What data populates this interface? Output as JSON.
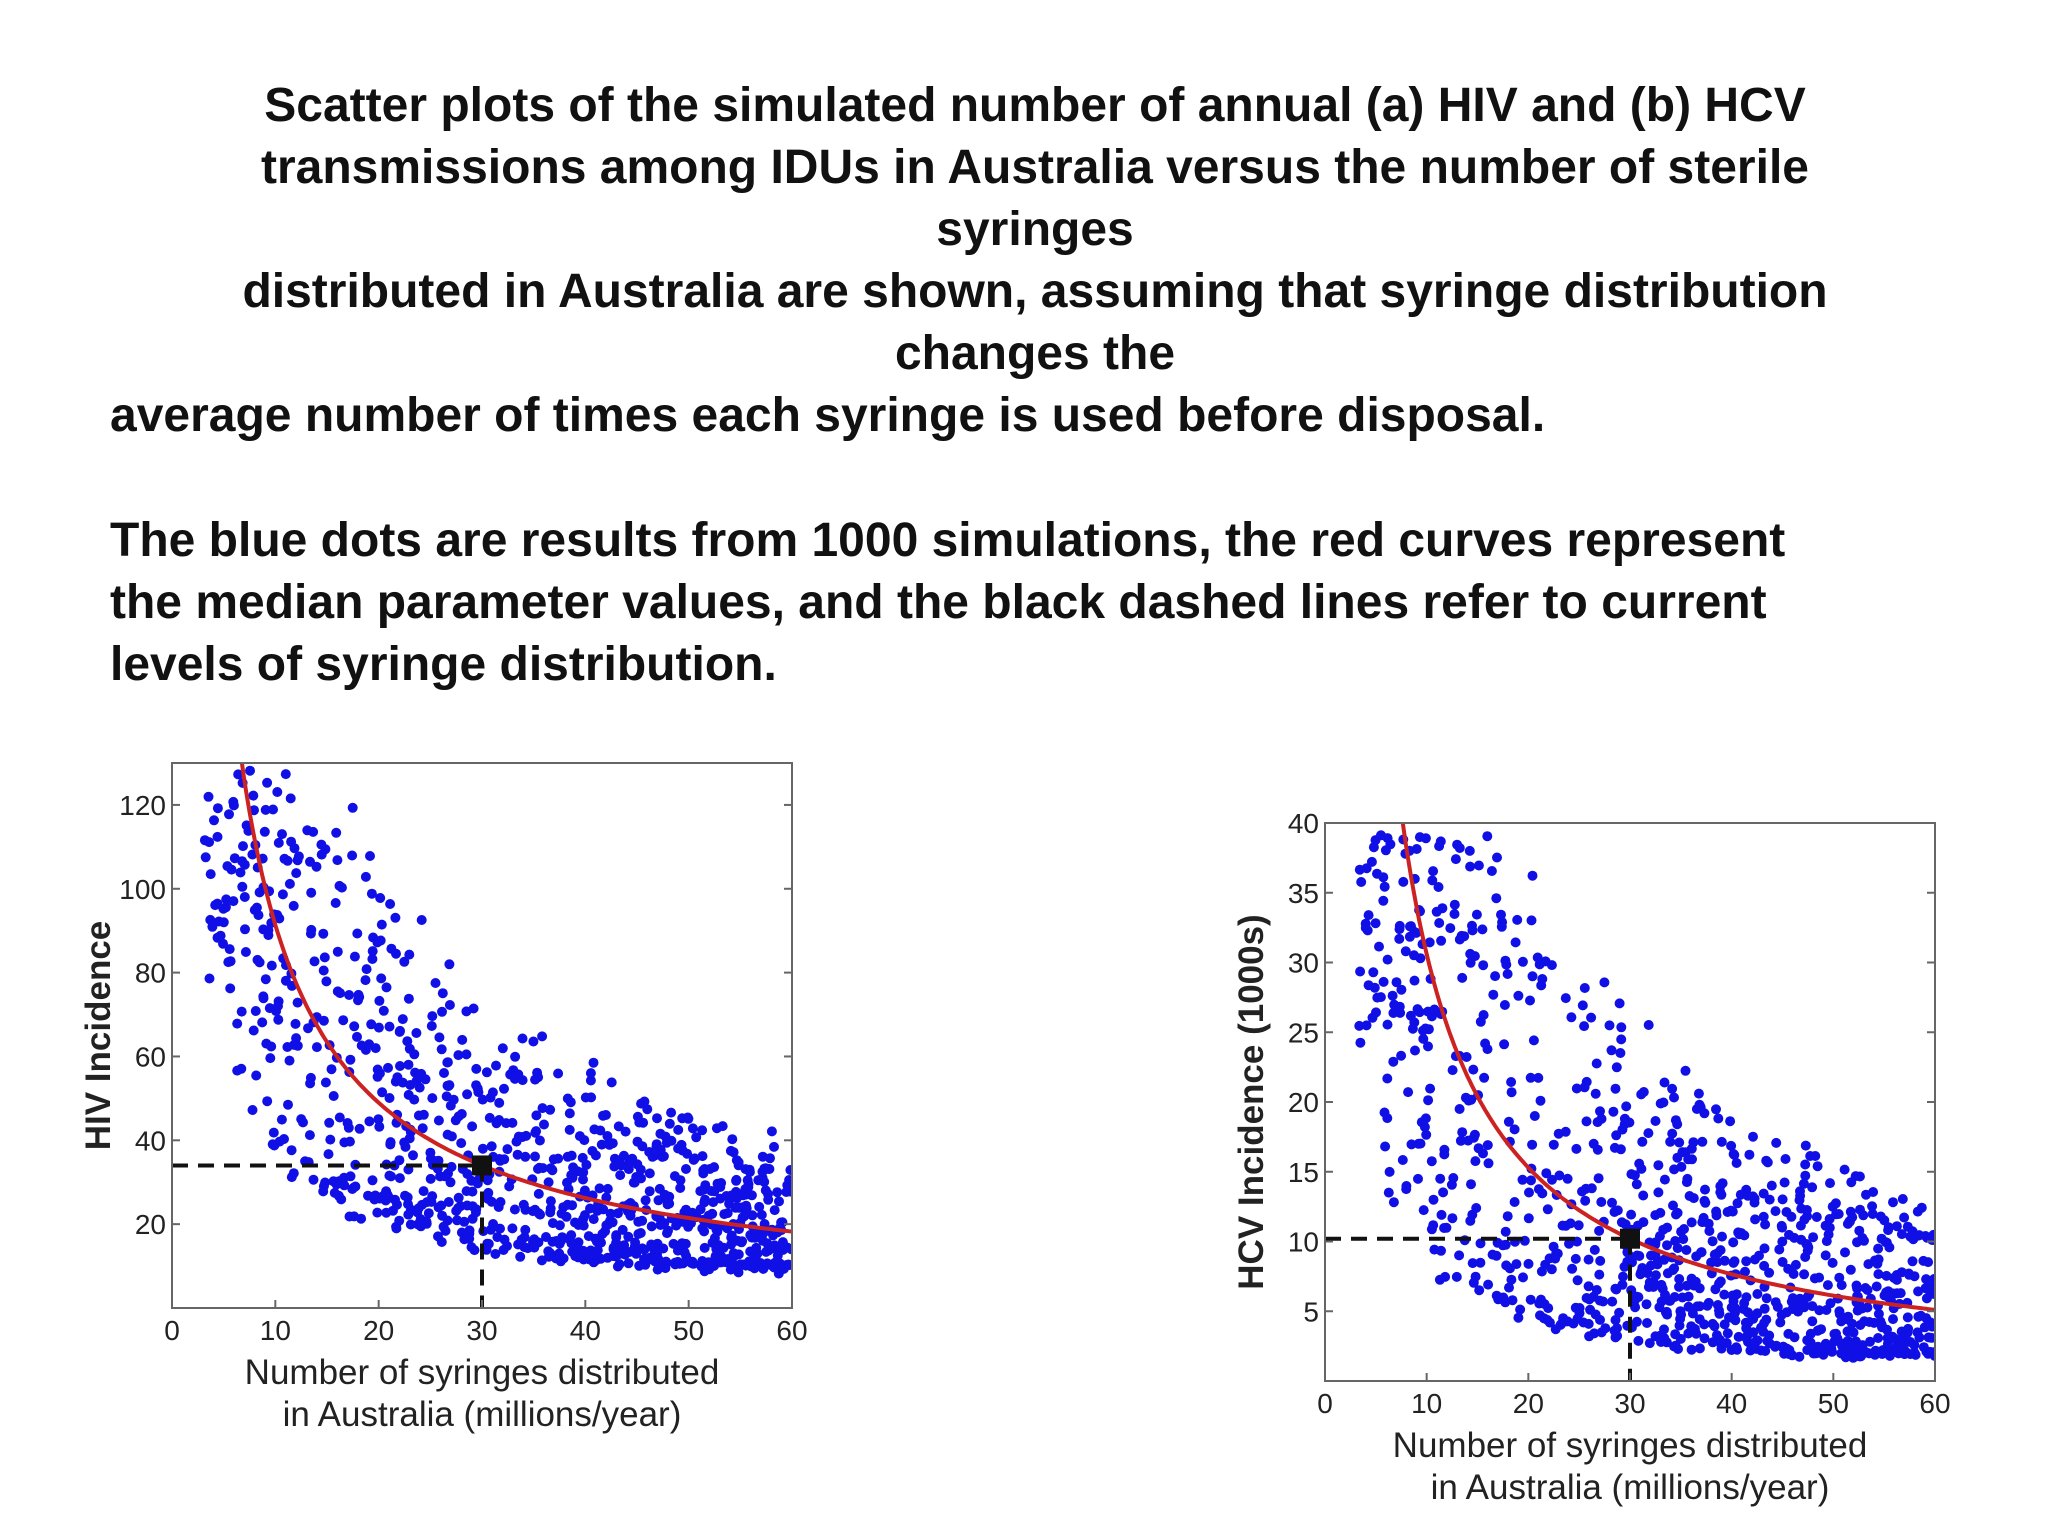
{
  "caption": {
    "line1": "Scatter plots of the simulated number of annual (a) HIV and (b) HCV",
    "line2": "transmissions among IDUs in Australia versus the number of sterile",
    "line3": "syringes",
    "line4": "distributed in Australia are shown, assuming that syringe distribution",
    "line5": "changes the",
    "line6": "average number of times each syringe is used before disposal.",
    "line7": "The blue dots are results from 1000 simulations, the red curves represent",
    "line8": "the median parameter values, and the black dashed lines refer to current",
    "line9": "levels of syringe distribution."
  },
  "colors": {
    "dots": "#1010e6",
    "curve": "#cc2222",
    "reference": "#111111"
  },
  "chart_data": [
    {
      "id": "a",
      "type": "scatter",
      "xlabel_line1": "Number of syringes distributed",
      "xlabel_line2": "in Australia (millions/year)",
      "ylabel": "HIV Incidence",
      "xlim": [
        0,
        60
      ],
      "ylim": [
        0,
        130
      ],
      "xticks": [
        0,
        10,
        20,
        30,
        40,
        50,
        60
      ],
      "yticks": [
        20,
        40,
        60,
        80,
        100,
        120
      ],
      "grid": false,
      "series": [
        {
          "kind": "points",
          "n_points": 1000,
          "color": "#1010e6",
          "generator": {
            "curve": "median",
            "x_range": [
              3,
              60
            ],
            "spread_low": 0.45,
            "spread_high": 2.0,
            "floor": 8
          }
        },
        {
          "kind": "median-curve",
          "color": "#cc2222",
          "formula": "y = 34 * (30/x)^0.9",
          "x_range": [
            6.5,
            60
          ]
        }
      ],
      "reference": {
        "x": 30,
        "y": 34
      }
    },
    {
      "id": "b",
      "type": "scatter",
      "xlabel_line1": "Number of syringes distributed",
      "xlabel_line2": "in Australia (millions/year)",
      "ylabel": "HCV Incidence (1000s)",
      "xlim": [
        0,
        60
      ],
      "ylim": [
        0,
        40
      ],
      "xticks": [
        0,
        10,
        20,
        30,
        40,
        50,
        60
      ],
      "yticks": [
        5,
        10,
        15,
        20,
        25,
        30,
        35,
        40
      ],
      "grid": false,
      "series": [
        {
          "kind": "points",
          "n_points": 1000,
          "color": "#1010e6",
          "generator": {
            "curve": "median",
            "x_range": [
              3,
              60
            ],
            "spread_low": 0.3,
            "spread_high": 2.4,
            "floor": 1.5
          }
        },
        {
          "kind": "median-curve",
          "color": "#cc2222",
          "formula": "y = 10.2 * (30/x)^1.0",
          "x_range": [
            7.5,
            60
          ]
        }
      ],
      "reference": {
        "x": 30,
        "y": 10.2
      }
    }
  ]
}
